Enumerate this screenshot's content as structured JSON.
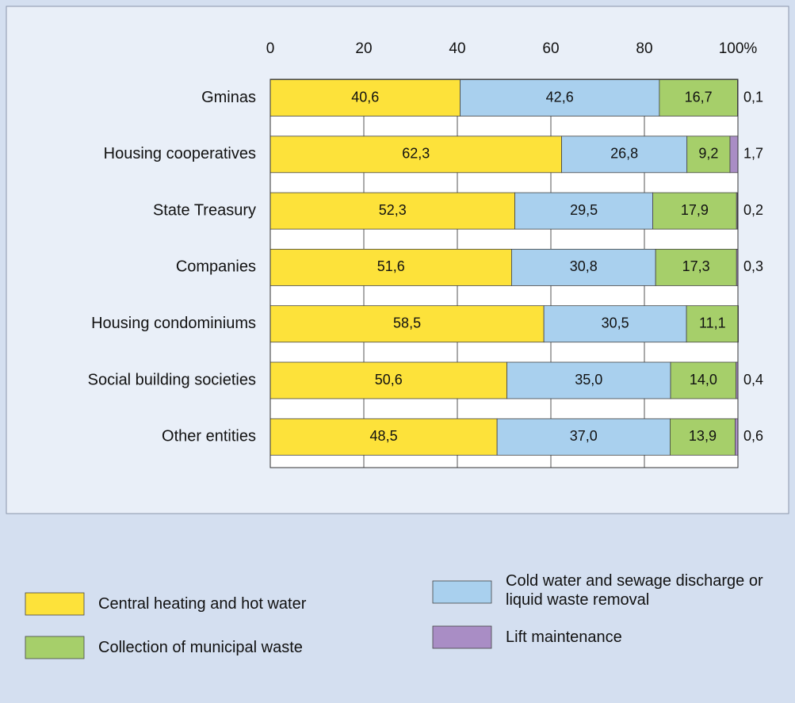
{
  "chart_data": {
    "type": "stacked-bar-horizontal",
    "categories": [
      "Gminas",
      "Housing cooperatives",
      "State Treasury",
      "Companies",
      "Housing condominiums",
      "Social building societies",
      "Other entities"
    ],
    "series": [
      {
        "name": "Central heating and hot water",
        "color": "#fde23a",
        "values": [
          40.6,
          62.3,
          52.3,
          51.6,
          58.5,
          50.6,
          48.5
        ],
        "value_labels": [
          "40,6",
          "62,3",
          "52,3",
          "51,6",
          "58,5",
          "50,6",
          "48,5"
        ]
      },
      {
        "name": "Cold water and sewage discharge or liquid waste removal",
        "color": "#a9d0ee",
        "values": [
          42.6,
          26.8,
          29.5,
          30.8,
          30.5,
          35.0,
          37.0
        ],
        "value_labels": [
          "42,6",
          "26,8",
          "29,5",
          "30,8",
          "30,5",
          "35,0",
          "37,0"
        ]
      },
      {
        "name": "Collection of municipal waste",
        "color": "#a6cf6a",
        "values": [
          16.7,
          9.2,
          17.9,
          17.3,
          11.1,
          14.0,
          13.9
        ],
        "value_labels": [
          "16,7",
          "9,2",
          "17,9",
          "17,3",
          "11,1",
          "14,0",
          "13,9"
        ]
      },
      {
        "name": "Lift maintenance",
        "color": "#a98dc5",
        "values": [
          0.1,
          1.7,
          0.2,
          0.3,
          null,
          0.4,
          0.6
        ],
        "value_labels": [
          "0,1",
          "1,7",
          "0,2",
          "0,3",
          null,
          "0,4",
          "0,6"
        ]
      }
    ],
    "xlim": [
      0,
      100
    ],
    "xticks": [
      0,
      20,
      40,
      60,
      80,
      {
        "value": 100,
        "label": "100%"
      }
    ],
    "grid": true
  }
}
